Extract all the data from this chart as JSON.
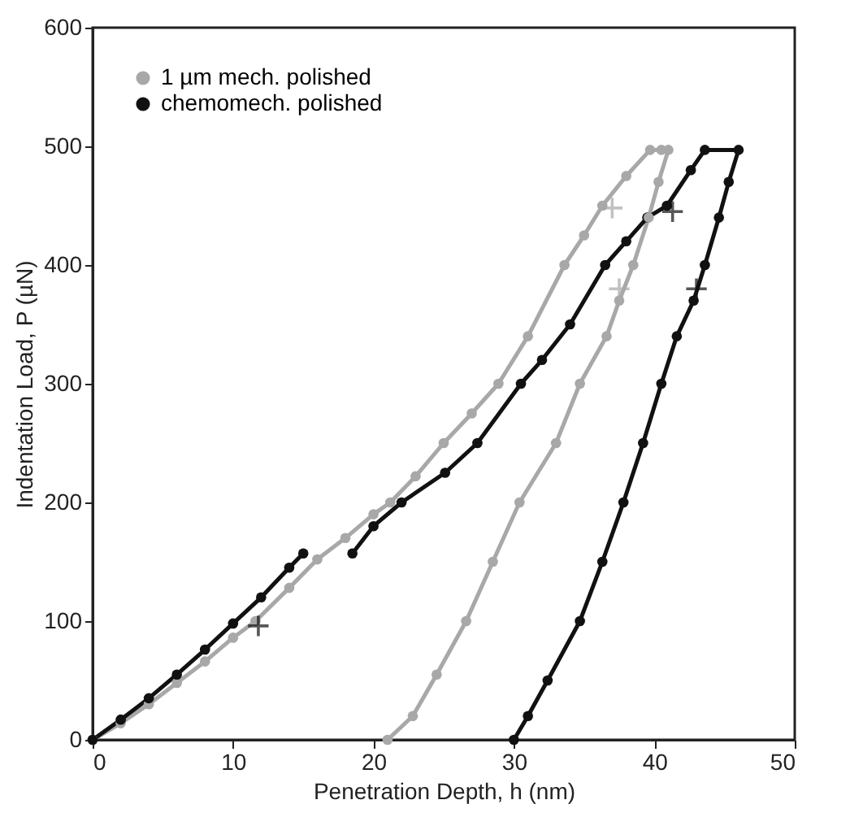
{
  "chart_data": {
    "type": "line",
    "xlabel": "Penetration Depth, h (nm)",
    "ylabel": "Indentation Load, P (µN)",
    "xlim": [
      0,
      50
    ],
    "ylim": [
      0,
      600
    ],
    "xticks": [
      0,
      10,
      20,
      30,
      40,
      50
    ],
    "yticks": [
      0,
      100,
      200,
      300,
      400,
      500,
      600
    ],
    "grid": false,
    "legend": "top left",
    "marker": "circle",
    "line_style": "solid",
    "series": [
      {
        "name": "1 µm mech. polished",
        "color": "#a8a8a8",
        "x": [
          0,
          2,
          4,
          6,
          8,
          10,
          11.6,
          14,
          16,
          18,
          20,
          21.2,
          23,
          25,
          27,
          28.9,
          31,
          33.6,
          35,
          36.3,
          38,
          39.7,
          40.5,
          41,
          40.3,
          39.6,
          38.5,
          37.5,
          36.6,
          34.7,
          33,
          30.4,
          28.5,
          26.6,
          24.5,
          22.8,
          21
        ],
        "values": [
          0,
          14,
          30,
          48,
          66,
          86,
          100,
          128,
          152,
          170,
          190,
          200,
          222,
          250,
          275,
          300,
          340,
          400,
          425,
          450,
          475,
          497,
          497,
          497,
          470,
          440,
          400,
          370,
          340,
          300,
          250,
          200,
          150,
          100,
          55,
          20,
          0
        ]
      },
      {
        "name": "chemomech. polished",
        "color": "#111111",
        "x": [
          0,
          2,
          4,
          6,
          8,
          10,
          12,
          14,
          15,
          16.7,
          18.5,
          20,
          22,
          25.1,
          27.4,
          30.5,
          32,
          34,
          36.5,
          38,
          39.5,
          40.9,
          42.6,
          43.6,
          46,
          45.3,
          44.6,
          43.6,
          42.8,
          41.6,
          40.5,
          39.2,
          37.8,
          36.3,
          34.7,
          32.4,
          31,
          30
        ],
        "values": [
          0,
          17,
          35,
          55,
          76,
          98,
          120,
          145,
          157,
          null,
          157,
          180,
          200,
          225,
          250,
          300,
          320,
          350,
          400,
          420,
          440,
          450,
          480,
          497,
          497,
          470,
          440,
          400,
          370,
          340,
          300,
          250,
          200,
          150,
          100,
          50,
          20,
          0
        ]
      },
      {
        "type": "scatter",
        "marker": "cross",
        "color": "#a8a8a8",
        "x": [
          37,
          37.5
        ],
        "values": [
          448,
          380
        ]
      },
      {
        "type": "scatter",
        "marker": "cross",
        "color": "#111111",
        "x": [
          41.3,
          43,
          11.8
        ],
        "values": [
          445,
          380,
          96
        ]
      }
    ]
  }
}
